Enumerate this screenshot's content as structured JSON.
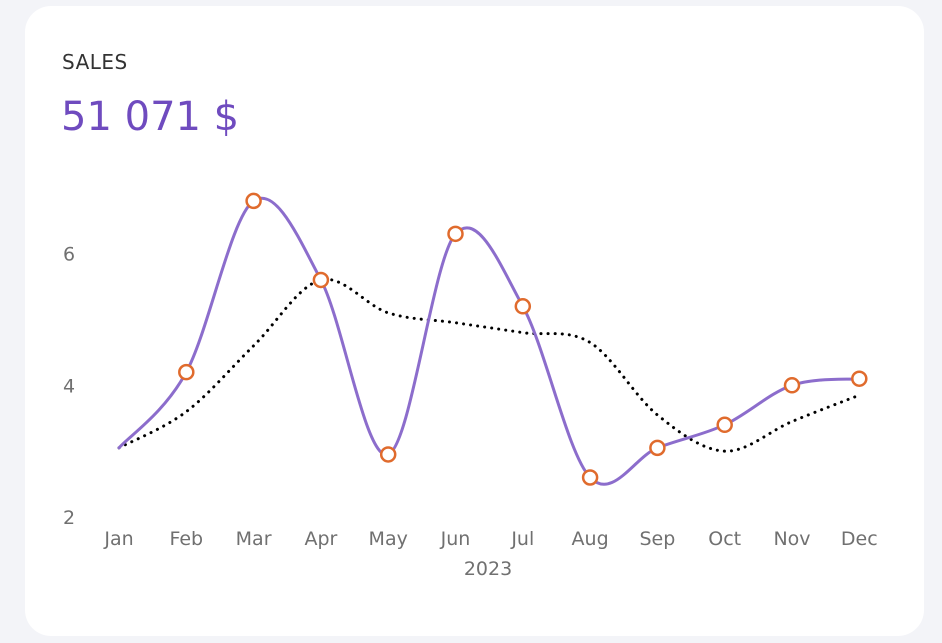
{
  "card": {
    "title": "SALES",
    "value": "51 071 $"
  },
  "chart_data": {
    "type": "line",
    "xlabel": "2023",
    "ylabel": "",
    "categories": [
      "Jan",
      "Feb",
      "Mar",
      "Apr",
      "May",
      "Jun",
      "Jul",
      "Aug",
      "Sep",
      "Oct",
      "Nov",
      "Dec"
    ],
    "ylim": [
      2,
      7.3
    ],
    "yticks": [
      "2",
      "4",
      "6"
    ],
    "grid": false,
    "series": [
      {
        "values": [
          3.05,
          4.2,
          6.8,
          5.6,
          2.95,
          6.3,
          5.2,
          2.6,
          3.05,
          3.4,
          4.0,
          4.1
        ],
        "color": "#8c6dcc",
        "style": "solid",
        "markers": true,
        "marker_color": "#e06b2d"
      },
      {
        "values": [
          3.05,
          3.6,
          4.6,
          5.6,
          5.1,
          4.95,
          4.8,
          4.65,
          3.55,
          3.0,
          3.45,
          3.85
        ],
        "color": "#000000",
        "style": "dotted",
        "markers": false
      }
    ]
  }
}
